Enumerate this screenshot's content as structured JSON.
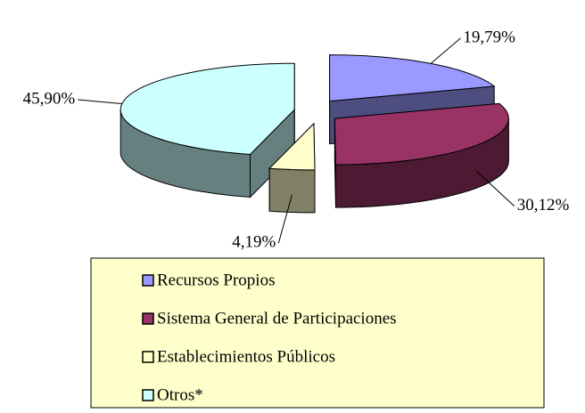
{
  "chart_data": {
    "type": "pie3d",
    "categories": [
      "Recursos Propios",
      "Sistema General de Participaciones",
      "Establecimientos Públicos",
      "Otros*"
    ],
    "values": [
      19.79,
      30.12,
      4.19,
      45.9
    ],
    "value_labels": [
      "19,79%",
      "30,12%",
      "4,19%",
      "45,90%"
    ],
    "colors": [
      "#9999FF",
      "#993366",
      "#FFFFCC",
      "#CCFFFF"
    ]
  }
}
